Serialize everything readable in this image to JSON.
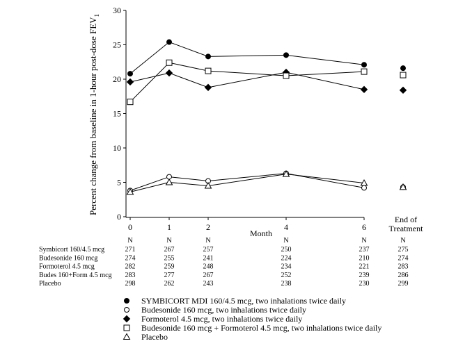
{
  "chart_data": {
    "type": "line",
    "ylabel": "Percent change from baseline in 1-hour post-dose FEV",
    "ylabel_subscript": "1",
    "xlabel": "Month",
    "ylim": [
      0,
      30
    ],
    "yticks": [
      0,
      5,
      10,
      15,
      20,
      25,
      30
    ],
    "x": [
      0,
      1,
      2,
      4,
      6
    ],
    "xtick_labels": [
      "0",
      "1",
      "2",
      "4",
      "6"
    ],
    "end_label_line1": "End of",
    "end_label_line2": "Treatment",
    "grid": false,
    "series": [
      {
        "name": "SYMBICORT MDI 160/4.5 mcg, two inhalations twice daily",
        "marker": "filled-circle",
        "values": [
          20.8,
          25.4,
          23.3,
          23.5,
          22.1
        ],
        "end_of_treatment": 21.6
      },
      {
        "name": "Budesonide 160 mcg, two inhalations twice daily",
        "marker": "open-circle",
        "values": [
          3.8,
          5.8,
          5.2,
          6.3,
          4.2
        ],
        "end_of_treatment": 4.3
      },
      {
        "name": "Formoterol 4.5 mcg, two inhalations twice daily",
        "marker": "filled-diamond",
        "values": [
          19.6,
          20.9,
          18.8,
          21.0,
          18.5
        ],
        "end_of_treatment": 18.4
      },
      {
        "name": "Budesonide 160 mcg + Formoterol 4.5 mcg, two inhalations twice daily",
        "marker": "open-square",
        "values": [
          16.7,
          22.4,
          21.2,
          20.5,
          21.1
        ],
        "end_of_treatment": 20.6
      },
      {
        "name": "Placebo",
        "marker": "open-triangle",
        "values": [
          3.6,
          5.0,
          4.5,
          6.2,
          4.9
        ],
        "end_of_treatment": 4.3
      }
    ],
    "n_table": {
      "header": "N",
      "rows": [
        {
          "label": "Symbicort 160/4.5 mcg",
          "values": [
            "271",
            "267",
            "257",
            "250",
            "237",
            "275"
          ]
        },
        {
          "label": "Budesonide 160 mcg",
          "values": [
            "274",
            "255",
            "241",
            "224",
            "210",
            "274"
          ]
        },
        {
          "label": "Formoterol 4.5 mcg",
          "values": [
            "282",
            "259",
            "248",
            "234",
            "221",
            "283"
          ]
        },
        {
          "label": "Budes 160+Form 4.5 mcg",
          "values": [
            "283",
            "277",
            "267",
            "252",
            "239",
            "286"
          ]
        },
        {
          "label": "Placebo",
          "values": [
            "298",
            "262",
            "243",
            "238",
            "230",
            "299"
          ]
        }
      ]
    },
    "legend_position": "bottom",
    "colors": {
      "line": "#000000",
      "background": "#ffffff"
    }
  }
}
